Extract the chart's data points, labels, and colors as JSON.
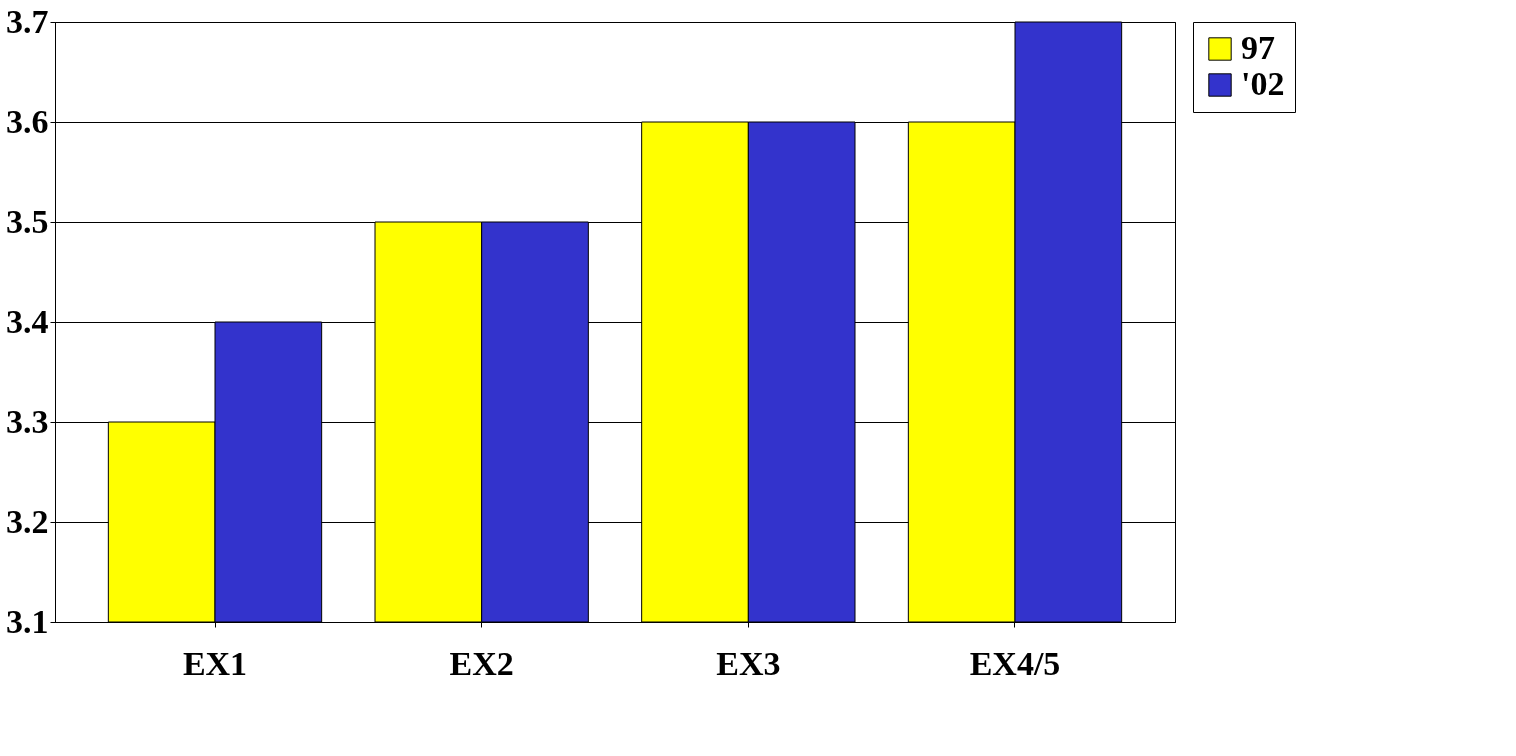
{
  "chart_data": {
    "type": "bar",
    "categories": [
      "EX1",
      "EX2",
      "EX3",
      "EX4/5"
    ],
    "series": [
      {
        "name": "97",
        "color": "#ffff00",
        "values": [
          3.3,
          3.5,
          3.6,
          3.6
        ]
      },
      {
        "name": "'02",
        "color": "#3333cc",
        "values": [
          3.4,
          3.5,
          3.6,
          3.7
        ]
      }
    ],
    "ylim": [
      3.1,
      3.7
    ],
    "yticks": [
      3.1,
      3.2,
      3.3,
      3.4,
      3.5,
      3.6,
      3.7
    ],
    "grid": "y",
    "legend": "right"
  }
}
